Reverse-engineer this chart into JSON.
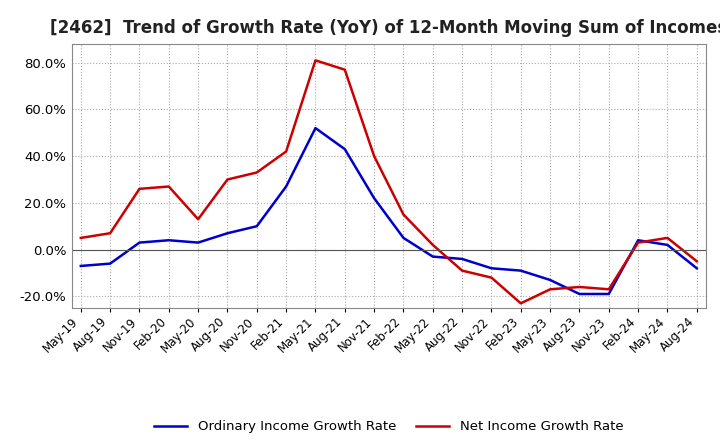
{
  "title": "[2462]  Trend of Growth Rate (YoY) of 12-Month Moving Sum of Incomes",
  "title_fontsize": 12,
  "ylim": [
    -25,
    88
  ],
  "yticks": [
    -20,
    0,
    20,
    40,
    60,
    80
  ],
  "background_color": "#ffffff",
  "grid_color": "#aaaaaa",
  "ordinary_color": "#0000cc",
  "net_color": "#cc0000",
  "legend_labels": [
    "Ordinary Income Growth Rate",
    "Net Income Growth Rate"
  ],
  "x_labels": [
    "May-19",
    "Aug-19",
    "Nov-19",
    "Feb-20",
    "May-20",
    "Aug-20",
    "Nov-20",
    "Feb-21",
    "May-21",
    "Aug-21",
    "Nov-21",
    "Feb-22",
    "May-22",
    "Aug-22",
    "Nov-22",
    "Feb-23",
    "May-23",
    "Aug-23",
    "Nov-23",
    "Feb-24",
    "May-24",
    "Aug-24"
  ],
  "ordinary_income_growth": [
    -7,
    -6,
    3,
    4,
    3,
    7,
    10,
    27,
    52,
    43,
    22,
    5,
    -3,
    -4,
    -8,
    -9,
    -13,
    -19,
    -19,
    4,
    2,
    -8
  ],
  "net_income_growth": [
    5,
    7,
    26,
    27,
    13,
    30,
    33,
    42,
    81,
    77,
    40,
    15,
    2,
    -9,
    -12,
    -23,
    -17,
    -16,
    -17,
    3,
    5,
    -5
  ]
}
